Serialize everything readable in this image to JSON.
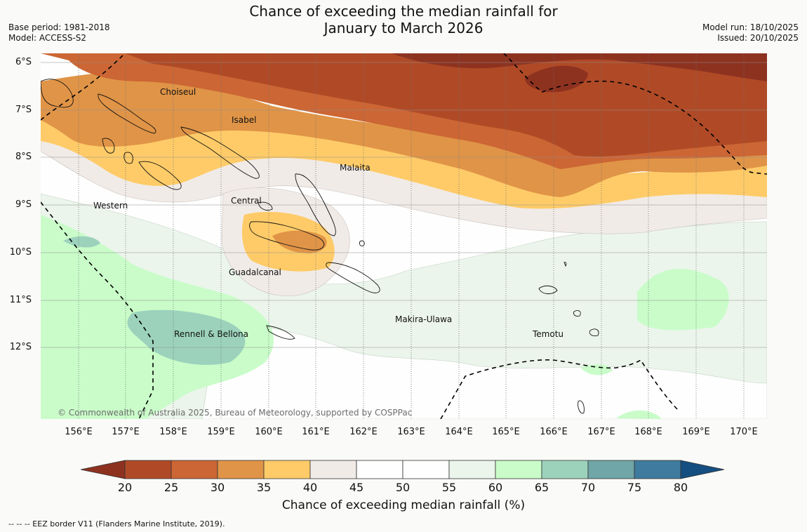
{
  "header": {
    "title_line1": "Chance of exceeding the median rainfall for",
    "title_line2": "January to March 2026",
    "base_period": "Base period: 1981-2018",
    "model": "Model: ACCESS-S2",
    "model_run": "Model run: 18/10/2025",
    "issued": "Issued: 20/10/2025"
  },
  "map": {
    "lat_labels": [
      "6°S",
      "7°S",
      "8°S",
      "9°S",
      "10°S",
      "11°S",
      "12°S"
    ],
    "lon_labels": [
      "156°E",
      "157°E",
      "158°E",
      "159°E",
      "160°E",
      "161°E",
      "162°E",
      "163°E",
      "164°E",
      "165°E",
      "166°E",
      "167°E",
      "168°E",
      "169°E",
      "170°E"
    ],
    "regions": [
      "Choiseul",
      "Isabel",
      "Malaita",
      "Western",
      "Central",
      "Guadalcanal",
      "Makira-Ulawa",
      "Rennell & Bellona",
      "Temotu"
    ],
    "copyright": "© Commonwealth of Australia 2025, Bureau of Meteorology, supported by COSPPac"
  },
  "colorbar": {
    "ticks": [
      "20",
      "25",
      "30",
      "35",
      "40",
      "45",
      "50",
      "55",
      "60",
      "65",
      "70",
      "75",
      "80"
    ],
    "colors": [
      "#8e3220",
      "#b04a26",
      "#cc6634",
      "#e09447",
      "#fecb68",
      "#f1ebe7",
      "#fdfefd",
      "#fdfefd",
      "#ebf5eb",
      "#c9fcc9",
      "#9cd2bc",
      "#70a6a7",
      "#3f7b9e",
      "#154e80"
    ],
    "label": "Chance of exceeding median rainfall (%)"
  },
  "footnote": "--  --  -- EEZ border V11 (Flanders Marine Institute, 2019)."
}
